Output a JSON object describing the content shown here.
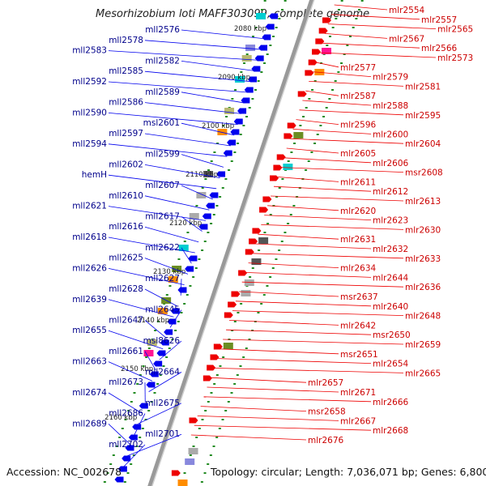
{
  "title": "Mesorhizobium loti MAFF303099, complete genome",
  "accession": "Accession: NC_002678",
  "summary": "Topology: circular; Length: 7,036,071 bp; Genes: 6,800",
  "colors": {
    "reverse_strand": "#0000ee",
    "forward_strand": "#ee0000",
    "left_label": "#00008b",
    "right_label": "#cc0000",
    "backbone": "#999999",
    "tick": "#228b22"
  },
  "kbp_marks": [
    "2080 kbp",
    "2090 kbp",
    "2100 kbp",
    "2110 kbp",
    "2120 kbp",
    "2130 kbp",
    "2140 kbp",
    "2150 kbp",
    "2160 kbp"
  ],
  "left_genes": [
    "mll2576",
    "mll2578",
    "mll2583",
    "mll2582",
    "mll2585",
    "mll2592",
    "mll2589",
    "mll2586",
    "mll2590",
    "msl2601",
    "mll2597",
    "mll2594",
    "mll2599",
    "mll2602",
    "hemH",
    "mll2607",
    "mll2610",
    "mll2621",
    "mll2617",
    "mll2616",
    "mll2618",
    "mll2622",
    "mll2625",
    "mll2626",
    "mll2627",
    "mll2628",
    "mll2639",
    "mll2645",
    "mll2647",
    "mll2655",
    "msl8626",
    "mll2661",
    "mll2663",
    "mll2664",
    "mll2673",
    "mll2674",
    "mll2675",
    "mll2686",
    "mll2689",
    "mll2701",
    "mll2702"
  ],
  "right_genes": [
    "mlr2554",
    "mlr2557",
    "mlr2565",
    "mlr2567",
    "mlr2566",
    "mlr2573",
    "mlr2577",
    "mlr2579",
    "mlr2581",
    "mlr2587",
    "mlr2588",
    "mlr2595",
    "mlr2596",
    "mlr2600",
    "mlr2604",
    "mlr2605",
    "mlr2606",
    "msr2608",
    "mlr2611",
    "mlr2612",
    "mlr2613",
    "mlr2620",
    "mlr2623",
    "mlr2630",
    "mlr2631",
    "mlr2632",
    "mlr2633",
    "mlr2634",
    "mlr2644",
    "mlr2636",
    "msr2637",
    "mlr2640",
    "mlr2648",
    "mlr2642",
    "msr2650",
    "mlr2659",
    "msr2651",
    "mlr2654",
    "mlr2665",
    "mlr2657",
    "mlr2671",
    "mlr2666",
    "msr2658",
    "mlr2667",
    "mlr2668",
    "mlr2676"
  ]
}
